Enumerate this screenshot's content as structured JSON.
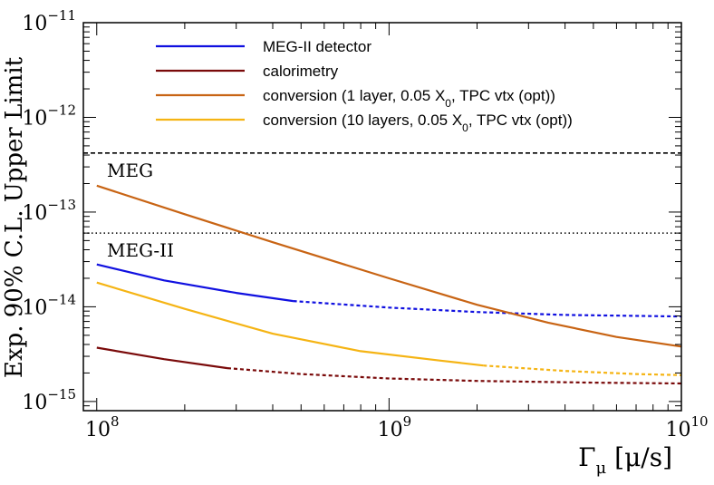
{
  "chart_data": {
    "type": "line",
    "xscale": "log",
    "yscale": "log",
    "xlim": [
      90000000,
      10000000000
    ],
    "ylim": [
      8e-16,
      1e-11
    ],
    "xlabel": {
      "base": "Γ",
      "sub": "μ",
      "unit": " [μ/s]"
    },
    "ylabel": "Exp. 90% C.L. Upper Limit",
    "x_ticks": [
      {
        "mantissa": "10",
        "exp": "8",
        "value": 100000000
      },
      {
        "mantissa": "10",
        "exp": "9",
        "value": 1000000000
      },
      {
        "mantissa": "10",
        "exp": "10",
        "value": 10000000000
      }
    ],
    "y_ticks": [
      {
        "mantissa": "10",
        "exp": "−11",
        "value": 1e-11
      },
      {
        "mantissa": "10",
        "exp": "−12",
        "value": 1e-12
      },
      {
        "mantissa": "10",
        "exp": "−13",
        "value": 1e-13
      },
      {
        "mantissa": "10",
        "exp": "−14",
        "value": 1e-14
      },
      {
        "mantissa": "10",
        "exp": "−15",
        "value": 1e-15
      }
    ],
    "reference_lines": [
      {
        "name": "MEG",
        "label": "MEG",
        "y": 4.2e-13,
        "style": "dashed",
        "color": "#000000"
      },
      {
        "name": "MEG-II",
        "label": "MEG-II",
        "y": 6e-14,
        "style": "dotted",
        "color": "#000000"
      }
    ],
    "series": [
      {
        "name": "MEG-II detector",
        "color": "#1010e0",
        "solid": {
          "x": [
            100000000,
            170000000,
            300000000,
            470000000
          ],
          "y": [
            2.8e-14,
            1.9e-14,
            1.4e-14,
            1.15e-14
          ]
        },
        "dashed": {
          "x": [
            470000000,
            1000000000,
            2000000000,
            4000000000,
            10000000000
          ],
          "y": [
            1.15e-14,
            9.8e-15,
            8.8e-15,
            8.2e-15,
            7.9e-15
          ]
        }
      },
      {
        "name": "calorimetry",
        "color": "#7a0a0a",
        "solid": {
          "x": [
            100000000,
            170000000,
            280000000
          ],
          "y": [
            3.7e-15,
            2.8e-15,
            2.25e-15
          ]
        },
        "dashed": {
          "x": [
            280000000,
            500000000,
            1000000000,
            2000000000,
            5000000000,
            10000000000
          ],
          "y": [
            2.25e-15,
            1.95e-15,
            1.75e-15,
            1.65e-15,
            1.58e-15,
            1.55e-15
          ]
        }
      },
      {
        "name": "conversion_1layer",
        "color": "#c86414",
        "solid": {
          "x": [
            100000000,
            200000000,
            400000000,
            1000000000,
            2000000000,
            3500000000,
            6000000000,
            10000000000
          ],
          "y": [
            1.9e-13,
            9.5e-14,
            4.8e-14,
            2e-14,
            1.05e-14,
            6.8e-15,
            4.8e-15,
            3.8e-15
          ]
        }
      },
      {
        "name": "conversion_10layers",
        "color": "#f5b414",
        "solid": {
          "x": [
            100000000,
            200000000,
            400000000,
            800000000,
            1500000000,
            2100000000
          ],
          "y": [
            1.8e-14,
            9.5e-15,
            5.2e-15,
            3.4e-15,
            2.7e-15,
            2.4e-15
          ]
        },
        "dashed": {
          "x": [
            2100000000,
            4000000000,
            7000000000,
            10000000000
          ],
          "y": [
            2.4e-15,
            2.1e-15,
            1.95e-15,
            1.9e-15
          ]
        }
      }
    ],
    "legend": [
      {
        "name": "MEG-II detector",
        "color": "#1010e0",
        "pre": "MEG-II detector",
        "sub": "",
        "post": ""
      },
      {
        "name": "calorimetry",
        "color": "#7a0a0a",
        "pre": "calorimetry",
        "sub": "",
        "post": ""
      },
      {
        "name": "conversion_1layer",
        "color": "#c86414",
        "pre": "conversion (1 layer, 0.05 X",
        "sub": "0",
        "post": ", TPC vtx (opt))"
      },
      {
        "name": "conversion_10layers",
        "color": "#f5b414",
        "pre": "conversion (10 layers, 0.05 X",
        "sub": "0",
        "post": ", TPC vtx (opt))"
      }
    ]
  }
}
